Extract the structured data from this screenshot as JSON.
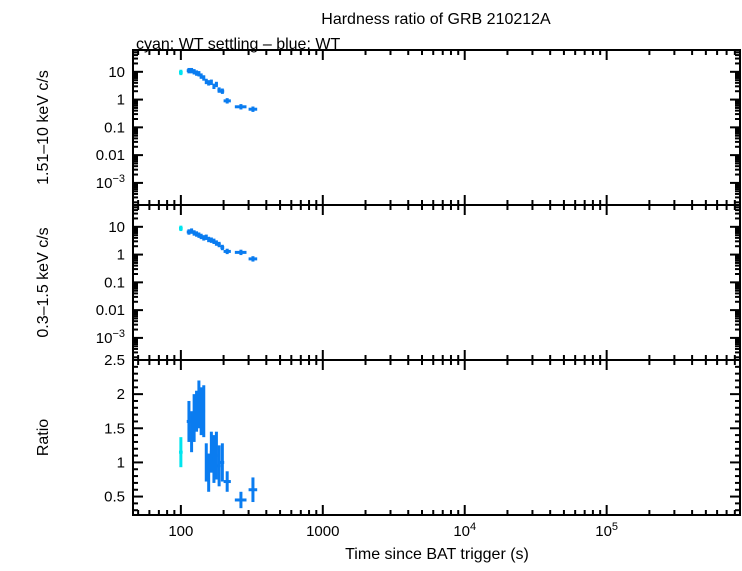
{
  "chart_data": {
    "type": "scatter",
    "title": "Hardness ratio of GRB 210212A",
    "subtitle": "cyan: WT settling – blue: WT",
    "xlabel": "Time since BAT trigger (s)",
    "xscale": "log",
    "xlim": [
      46,
      870000
    ],
    "xticks": [
      {
        "v": 100,
        "l": "100"
      },
      {
        "v": 1000,
        "l": "1000"
      },
      {
        "v": 10000,
        "l": "10",
        "e": "4"
      },
      {
        "v": 100000,
        "l": "10",
        "e": "5"
      }
    ],
    "colors": {
      "settling": "#00e5ee",
      "wt": "#0a7cf0"
    },
    "panels": [
      {
        "ylabel": "1.51–10 keV c/s",
        "yscale": "log",
        "ylim": [
          0.00016,
          61
        ],
        "yticks": [
          {
            "v": 10,
            "l": "10"
          },
          {
            "v": 1,
            "l": "1"
          },
          {
            "v": 0.1,
            "l": "0.1"
          },
          {
            "v": 0.01,
            "l": "0.01"
          },
          {
            "v": 0.001,
            "l": "10",
            "e": "−3"
          }
        ]
      },
      {
        "ylabel": "0.3–1.5 keV c/s",
        "yscale": "log",
        "ylim": [
          0.00016,
          61
        ],
        "yticks": [
          {
            "v": 10,
            "l": "10"
          },
          {
            "v": 1,
            "l": "1"
          },
          {
            "v": 0.1,
            "l": "0.1"
          },
          {
            "v": 0.01,
            "l": "0.01"
          },
          {
            "v": 0.001,
            "l": "10",
            "e": "−3"
          }
        ]
      },
      {
        "ylabel": "Ratio",
        "yscale": "linear",
        "ylim": [
          0.23,
          2.5
        ],
        "yticks": [
          {
            "v": 2.5,
            "l": "2.5"
          },
          {
            "v": 2,
            "l": "2"
          },
          {
            "v": 1.5,
            "l": "1.5"
          },
          {
            "v": 1,
            "l": "1"
          },
          {
            "v": 0.5,
            "l": "0.5"
          }
        ]
      }
    ],
    "series": [
      {
        "mode": "settling",
        "t": [
          100
        ],
        "tlo": [
          97
        ],
        "thi": [
          103
        ],
        "hard": [
          9.5
        ],
        "soft": [
          8.8
        ],
        "ratio": [
          1.15
        ],
        "rerr": [
          0.22
        ]
      },
      {
        "mode": "wt",
        "t": [
          114,
          119,
          124,
          129,
          134,
          139,
          145,
          151,
          157,
          164,
          171,
          178,
          186,
          196,
          212,
          265,
          322
        ],
        "tlo": [
          110,
          116,
          121,
          126,
          131,
          136,
          142,
          148,
          154,
          160,
          167,
          174,
          181,
          190,
          200,
          240,
          300
        ],
        "thi": [
          118,
          122,
          127,
          132,
          137,
          142,
          148,
          154,
          160,
          167,
          174,
          182,
          191,
          202,
          225,
          290,
          345
        ],
        "hard": [
          11,
          11,
          10,
          9,
          8.5,
          7,
          6,
          4.5,
          4,
          4.2,
          3,
          3.5,
          2.2,
          2,
          0.9,
          0.55,
          0.45
        ],
        "soft": [
          6.5,
          7,
          6,
          5.5,
          5,
          4.5,
          4,
          4.2,
          3.5,
          3.3,
          3,
          2.6,
          2.3,
          1.8,
          1.3,
          1.2,
          0.7
        ],
        "ratio": [
          1.6,
          1.45,
          1.65,
          1.75,
          1.85,
          1.75,
          1.75,
          1.0,
          0.85,
          1.15,
          1.05,
          1.1,
          0.95,
          1.0,
          0.72,
          0.45,
          0.6
        ],
        "rerr": [
          0.3,
          0.3,
          0.35,
          0.3,
          0.35,
          0.35,
          0.38,
          0.28,
          0.28,
          0.3,
          0.35,
          0.35,
          0.3,
          0.28,
          0.15,
          0.12,
          0.18
        ]
      }
    ]
  }
}
